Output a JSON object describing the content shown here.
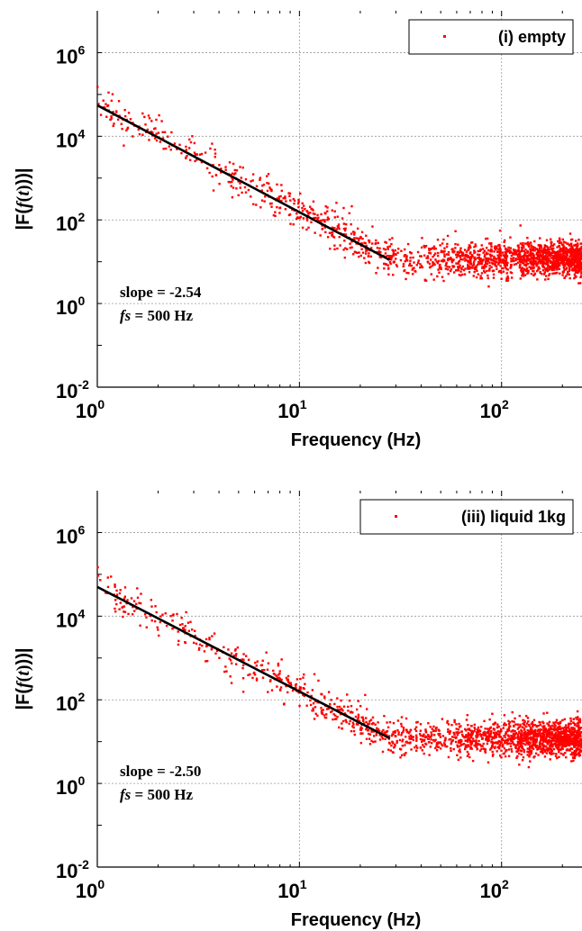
{
  "chart_data": [
    {
      "type": "scatter",
      "scale": {
        "x": "log",
        "y": "log"
      },
      "xlim": [
        1,
        250
      ],
      "ylim": [
        0.01,
        10000000
      ],
      "grid": true,
      "legend_position": "top-right",
      "xlabel": "Frequency (Hz)",
      "ylabel_parts": {
        "prefix": "|F(",
        "f": "f",
        "open": "(",
        "t": "t",
        "close": ")",
        "suffix": "))|"
      },
      "x_ticks": [
        {
          "base": "10",
          "exp": "0",
          "value": 1
        },
        {
          "base": "10",
          "exp": "1",
          "value": 10
        },
        {
          "base": "10",
          "exp": "2",
          "value": 100
        }
      ],
      "y_ticks": [
        {
          "base": "10",
          "exp": "-2",
          "value": 0.01
        },
        {
          "base": "10",
          "exp": "0",
          "value": 1
        },
        {
          "base": "10",
          "exp": "2",
          "value": 100
        },
        {
          "base": "10",
          "exp": "4",
          "value": 10000
        },
        {
          "base": "10",
          "exp": "6",
          "value": 1000000
        }
      ],
      "series": [
        {
          "name": "(i) empty",
          "color": "#ff0000",
          "marker": "dot",
          "model": {
            "fit_from": 1.0,
            "fit_slope": -2.54,
            "fit_intercept": 55000,
            "knee_hz": 30,
            "plateau": 12,
            "noise_decades": 0.4,
            "plateau_noise_decades": 0.35,
            "points": 1600
          }
        },
        {
          "name": "fit",
          "color": "#000000",
          "type": "line",
          "points": [
            {
              "x": 1.0,
              "y": 55000
            },
            {
              "x": 28,
              "y": 11
            }
          ]
        }
      ],
      "annotations": {
        "slope_label": "slope = -2.54",
        "fs_prefix": "fs",
        "fs_suffix": " = 500 Hz"
      }
    },
    {
      "type": "scatter",
      "scale": {
        "x": "log",
        "y": "log"
      },
      "xlim": [
        1,
        250
      ],
      "ylim": [
        0.01,
        10000000
      ],
      "grid": true,
      "legend_position": "top-right",
      "xlabel": "Frequency (Hz)",
      "ylabel_parts": {
        "prefix": "|F(",
        "f": "f",
        "open": "(",
        "t": "t",
        "close": ")",
        "suffix": "))|"
      },
      "x_ticks": [
        {
          "base": "10",
          "exp": "0",
          "value": 1
        },
        {
          "base": "10",
          "exp": "1",
          "value": 10
        },
        {
          "base": "10",
          "exp": "2",
          "value": 100
        }
      ],
      "y_ticks": [
        {
          "base": "10",
          "exp": "-2",
          "value": 0.01
        },
        {
          "base": "10",
          "exp": "0",
          "value": 1
        },
        {
          "base": "10",
          "exp": "2",
          "value": 100
        },
        {
          "base": "10",
          "exp": "4",
          "value": 10000
        },
        {
          "base": "10",
          "exp": "6",
          "value": 1000000
        }
      ],
      "series": [
        {
          "name": "(iii) liquid 1kg",
          "color": "#ff0000",
          "marker": "dot",
          "model": {
            "fit_from": 1.0,
            "fit_slope": -2.5,
            "fit_intercept": 50000,
            "knee_hz": 30,
            "plateau": 12,
            "noise_decades": 0.4,
            "plateau_noise_decades": 0.35,
            "points": 1600
          }
        },
        {
          "name": "fit",
          "color": "#000000",
          "type": "line",
          "points": [
            {
              "x": 1.0,
              "y": 50000
            },
            {
              "x": 28,
              "y": 12
            }
          ]
        }
      ],
      "annotations": {
        "slope_label": "slope = -2.50",
        "fs_prefix": "fs",
        "fs_suffix": " = 500 Hz"
      }
    }
  ]
}
